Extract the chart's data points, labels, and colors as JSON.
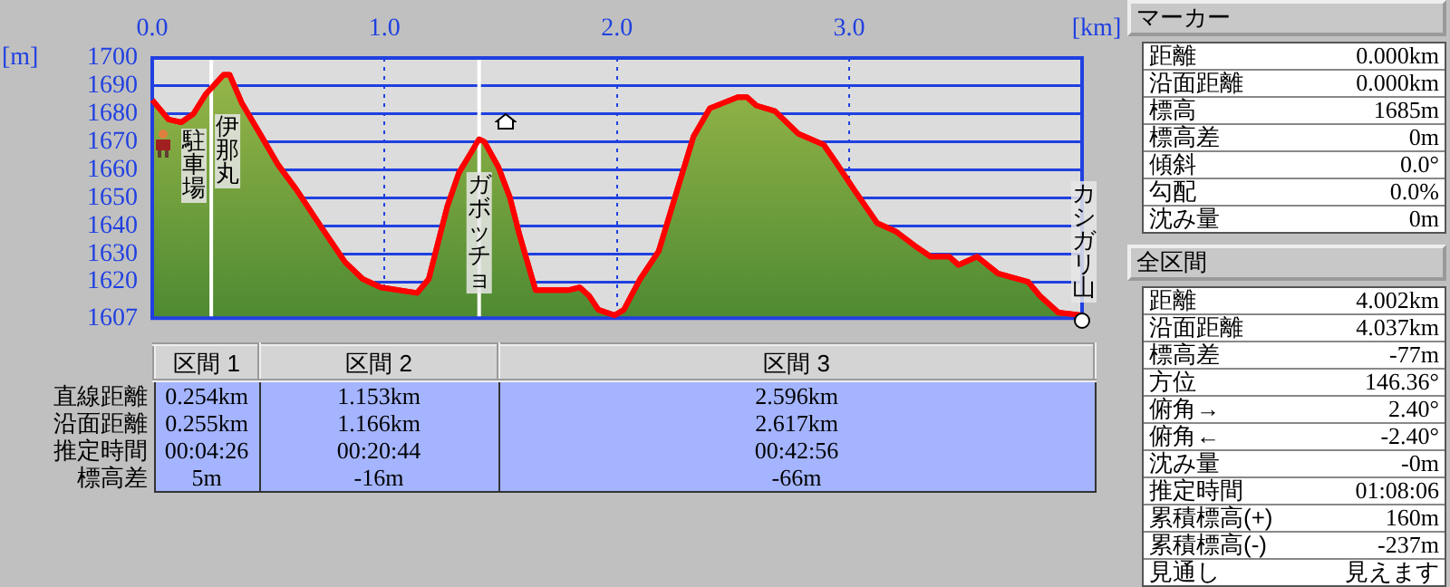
{
  "chart_data": {
    "type": "area",
    "xlabel": "[km]",
    "ylabel": "[m]",
    "xlim": [
      0,
      4.002
    ],
    "xticks": [
      {
        "value": 0,
        "label": "0.0"
      },
      {
        "value": 1,
        "label": "1.0"
      },
      {
        "value": 2,
        "label": "2.0"
      },
      {
        "value": 3,
        "label": "3.0"
      }
    ],
    "ylim": [
      1607,
      1700
    ],
    "yticks": [
      1607,
      1620,
      1630,
      1640,
      1650,
      1660,
      1670,
      1680,
      1690,
      1700
    ],
    "grid": true,
    "legend": false,
    "marker": "none",
    "line_style": "solid",
    "series": [
      {
        "color": "#ff0000",
        "x": [
          0,
          0.07,
          0.125,
          0.177,
          0.23,
          0.307,
          0.333,
          0.385,
          0.463,
          0.54,
          0.62,
          0.724,
          0.83,
          0.906,
          0.984,
          1.14,
          1.19,
          1.27,
          1.32,
          1.407,
          1.43,
          1.49,
          1.54,
          1.58,
          1.65,
          1.79,
          1.84,
          1.88,
          1.92,
          1.99,
          2.03,
          2.1,
          2.18,
          2.26,
          2.33,
          2.4,
          2.52,
          2.56,
          2.6,
          2.68,
          2.78,
          2.89,
          2.94,
          3.02,
          3.12,
          3.2,
          3.28,
          3.35,
          3.43,
          3.47,
          3.55,
          3.64,
          3.77,
          3.82,
          3.9,
          4.002
        ],
        "values": [
          1685,
          1678,
          1677,
          1680,
          1687,
          1694,
          1694,
          1684,
          1673,
          1662,
          1653,
          1640,
          1627,
          1621,
          1618,
          1616,
          1621,
          1647,
          1659,
          1671,
          1670,
          1661,
          1650,
          1637,
          1617,
          1617,
          1618,
          1615,
          1610,
          1608,
          1610,
          1621,
          1631,
          1653,
          1672,
          1682,
          1686,
          1686,
          1683,
          1681,
          1673,
          1669,
          1663,
          1653,
          1641,
          1638,
          1633,
          1629,
          1629,
          1626,
          1629,
          1623,
          1620,
          1615,
          1609,
          1608
        ]
      }
    ],
    "ref_lines": [
      {
        "axis": "x",
        "value": 0.254,
        "color": "#ffffff"
      },
      {
        "axis": "x",
        "value": 1.407,
        "color": "#ffffff"
      }
    ],
    "annotations": [
      {
        "text": "駐車場",
        "x": 0,
        "y": 1685
      },
      {
        "text": "伊那丸",
        "x": 0.254,
        "y": 1690
      },
      {
        "text": "ガボッチョ",
        "x": 1.407,
        "y": 1671
      },
      {
        "text": "カシガリ山",
        "x": 4.002,
        "y": 1608
      },
      "マーカー",
      "距離",
      "0.000km",
      "沿面距離",
      "0.000km",
      "標高",
      "1685m",
      "標高差",
      "0m",
      "傾斜",
      "0.0°",
      "勾配",
      "0.0%",
      "沈み量",
      "0m",
      "全区間",
      "距離",
      "4.002km",
      "沿面距離",
      "4.037km",
      "標高差",
      "-77m",
      "方位",
      "146.36°",
      "俯角→",
      "2.40°",
      "俯角←",
      "-2.40°",
      "沈み量",
      "-0m",
      "推定時間",
      "01:08:06",
      "累積標高(+)",
      "160m",
      "累積標高(-)",
      "-237m",
      "見通し",
      "見えます",
      "区間 1",
      "区間 2",
      "区間 3",
      "直線距離",
      "0.254km",
      "1.153km",
      "2.596km",
      "沿面距離",
      "0.255km",
      "1.166km",
      "2.617km",
      "推定時間",
      "00:04:26",
      "00:20:44",
      "00:42:56",
      "標高差",
      "5m",
      "-16m",
      "-66m"
    ]
  }
}
